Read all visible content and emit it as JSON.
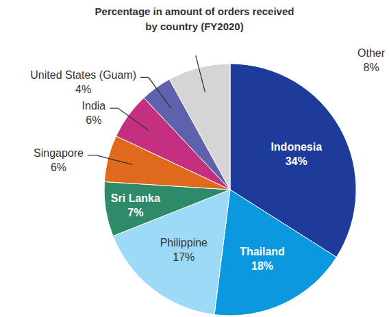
{
  "chart_data": {
    "type": "pie",
    "title": "Percentage in amount of orders received by country (FY2020)",
    "categories": [
      "Indonesia",
      "Thailand",
      "Philippine",
      "Sri Lanka",
      "Singapore",
      "India",
      "United States (Guam)",
      "Other"
    ],
    "values": [
      34,
      18,
      17,
      7,
      6,
      6,
      4,
      8
    ],
    "value_labels": [
      "34%",
      "18%",
      "17%",
      "7%",
      "6%",
      "6%",
      "4%",
      "8%"
    ],
    "colors": [
      "#1d3b9b",
      "#0a98de",
      "#9ddaf8",
      "#2e8a68",
      "#df6a1d",
      "#c4307f",
      "#5e62ac",
      "#d5d5d5"
    ],
    "data_labels": true
  }
}
